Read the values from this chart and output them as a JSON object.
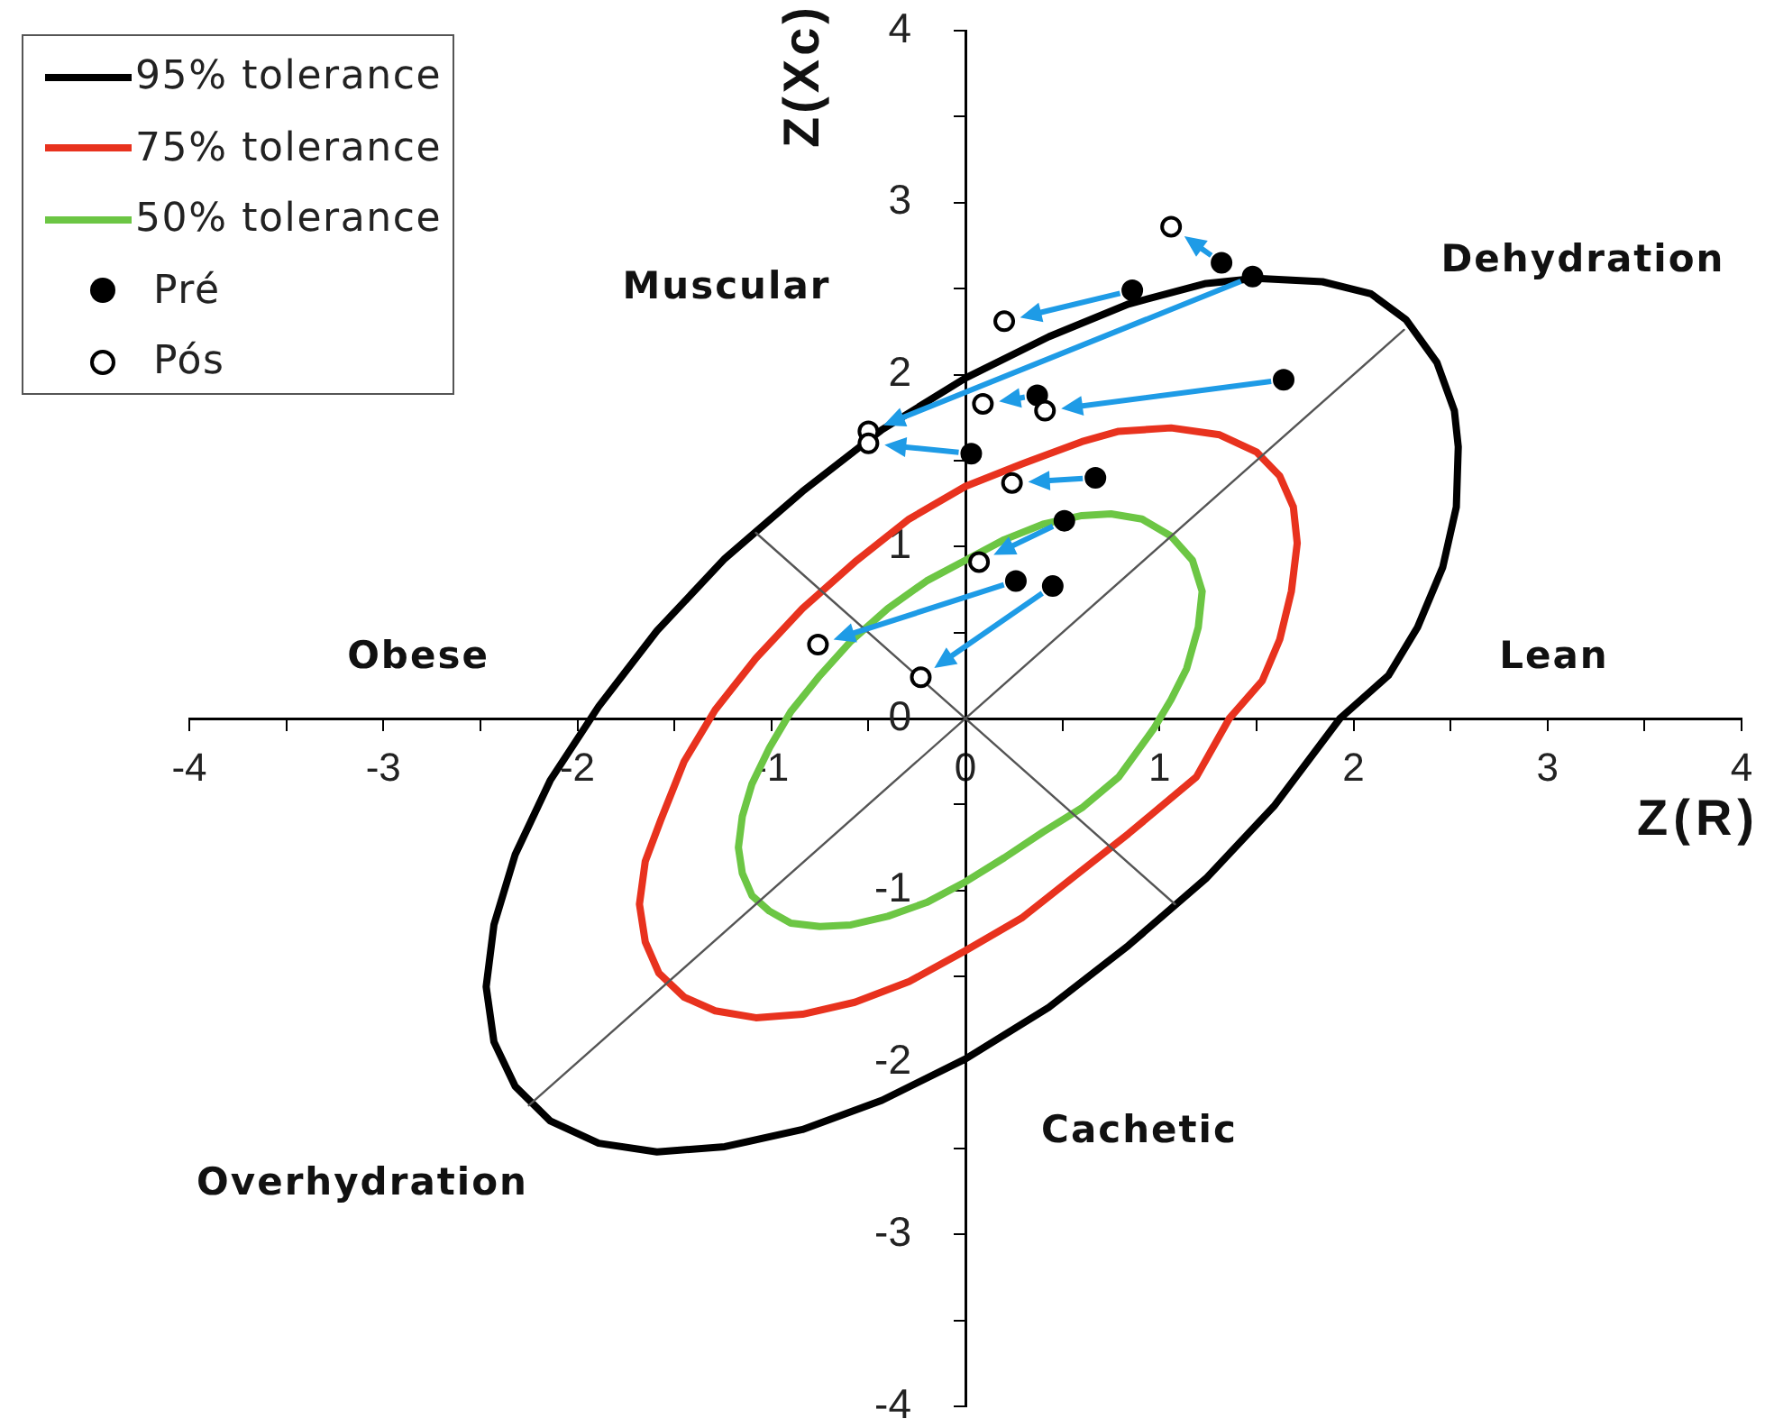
{
  "chart_data": {
    "type": "scatter",
    "xlabel": "Z(R)",
    "ylabel": "Z(Xc)",
    "xlim": [
      -4,
      4
    ],
    "ylim": [
      -4,
      4
    ],
    "xticks": [
      -4,
      {
        "value": -3.5,
        "label": null
      },
      -3,
      {
        "value": -2.5,
        "label": null
      },
      -2,
      {
        "value": -1.5,
        "label": null
      },
      -1,
      {
        "value": -0.5,
        "label": null
      },
      0,
      {
        "value": 0.5,
        "label": null
      },
      1,
      {
        "value": 1.5,
        "label": null
      },
      2,
      {
        "value": 2.5,
        "label": null
      },
      3,
      {
        "value": 3.5,
        "label": null
      },
      4
    ],
    "yticks": [
      -4,
      {
        "value": -3.5,
        "label": null
      },
      -3,
      {
        "value": -2.5,
        "label": null
      },
      -2,
      {
        "value": -1.5,
        "label": null
      },
      -1,
      {
        "value": -0.5,
        "label": null
      },
      0,
      {
        "value": 0.5,
        "label": null
      },
      1,
      {
        "value": 1.5,
        "label": null
      },
      2,
      {
        "value": 2.5,
        "label": null
      },
      3,
      {
        "value": 3.5,
        "label": null
      },
      4
    ],
    "grid": false,
    "legend": "top left",
    "annotations": [
      "Muscular",
      "Dehydration",
      "Obese",
      "Lean",
      "Overhydration",
      "Cachetic"
    ],
    "series": [
      {
        "name": "95% tolerance",
        "type": "line",
        "color": "#000000",
        "marker": "none",
        "x": [
          2.54,
          2.52,
          2.43,
          2.27,
          2.09,
          1.84,
          1.5,
          1.24,
          0.84,
          0.43,
          0,
          -0.43,
          -0.84,
          -1.24,
          -1.59,
          -1.89,
          -2.14,
          -2.32,
          -2.43,
          -2.47,
          -2.43,
          -2.32,
          -2.14,
          -1.89,
          -1.59,
          -1.24,
          -0.84,
          -0.43,
          0,
          0.43,
          0.84,
          1.24,
          1.59,
          1.93,
          2.18,
          2.33,
          2.46,
          2.53,
          2.54,
          2.52
        ],
        "values": [
          1.58,
          1.79,
          2.07,
          2.32,
          2.47,
          2.54,
          2.56,
          2.53,
          2.41,
          2.22,
          1.98,
          1.68,
          1.32,
          0.93,
          0.51,
          0.07,
          -0.36,
          -0.79,
          -1.2,
          -1.56,
          -1.88,
          -2.14,
          -2.34,
          -2.47,
          -2.52,
          -2.49,
          -2.39,
          -2.22,
          -1.98,
          -1.68,
          -1.32,
          -0.93,
          -0.51,
          0,
          0.25,
          0.53,
          0.88,
          1.23,
          1.58,
          1.79
        ]
      },
      {
        "name": "75% tolerance",
        "type": "line",
        "color": "#e8321e",
        "marker": "none",
        "x": [
          1.71,
          1.69,
          1.62,
          1.5,
          1.31,
          1.06,
          0.79,
          0.6,
          0.29,
          0,
          -0.29,
          -0.57,
          -0.84,
          -1.08,
          -1.29,
          -1.45,
          -1.57,
          -1.65,
          -1.68,
          -1.65,
          -1.58,
          -1.45,
          -1.29,
          -1.08,
          -0.84,
          -0.57,
          -0.29,
          0,
          0.29,
          0.57,
          0.84,
          1.19,
          1.36,
          1.53,
          1.62,
          1.68,
          1.71,
          1.69
        ],
        "values": [
          1.02,
          1.23,
          1.41,
          1.55,
          1.65,
          1.69,
          1.67,
          1.61,
          1.48,
          1.35,
          1.16,
          0.91,
          0.64,
          0.35,
          0.05,
          -0.25,
          -0.59,
          -0.83,
          -1.08,
          -1.3,
          -1.48,
          -1.62,
          -1.7,
          -1.74,
          -1.72,
          -1.65,
          -1.53,
          -1.35,
          -1.16,
          -0.91,
          -0.67,
          -0.34,
          0,
          0.22,
          0.46,
          0.74,
          1.02,
          1.23
        ]
      },
      {
        "name": "50% tolerance",
        "type": "line",
        "color": "#6cc644",
        "marker": "none",
        "x": [
          1.22,
          1.17,
          1.06,
          0.91,
          0.75,
          0.6,
          0.4,
          0.2,
          0,
          -0.2,
          -0.4,
          -0.59,
          -0.75,
          -0.9,
          -1.01,
          -1.1,
          -1.15,
          -1.17,
          -1.15,
          -1.1,
          -1.01,
          -0.9,
          -0.75,
          -0.59,
          -0.4,
          -0.2,
          0,
          0.2,
          0.4,
          0.6,
          0.79,
          0.97,
          1.06,
          1.14,
          1.2,
          1.22,
          1.17
        ],
        "values": [
          0.74,
          0.92,
          1.06,
          1.16,
          1.19,
          1.18,
          1.13,
          1.04,
          0.92,
          0.8,
          0.64,
          0.45,
          0.25,
          0.04,
          -0.17,
          -0.38,
          -0.57,
          -0.75,
          -0.9,
          -1.03,
          -1.12,
          -1.19,
          -1.21,
          -1.2,
          -1.15,
          -1.07,
          -0.95,
          -0.81,
          -0.66,
          -0.52,
          -0.34,
          -0.06,
          0.11,
          0.29,
          0.53,
          0.74,
          0.92
        ]
      },
      {
        "type": "line",
        "color": "#555555",
        "marker": "none",
        "x": [
          -2.25,
          2.26
        ],
        "values": [
          -2.25,
          2.26
        ]
      },
      {
        "type": "line",
        "color": "#555555",
        "marker": "none",
        "x": [
          -1.08,
          1.08
        ],
        "values": [
          1.08,
          -1.08
        ]
      },
      {
        "name": "Pré",
        "color": "#000000",
        "marker": "circle",
        "x": [
          1.32,
          1.48,
          0.86,
          1.64,
          0.37,
          0.03,
          0.67,
          0.51,
          0.26,
          0.45
        ],
        "values": [
          2.65,
          2.57,
          2.49,
          1.97,
          1.88,
          1.54,
          1.4,
          1.15,
          0.8,
          0.77
        ]
      },
      {
        "name": "Pós",
        "color": "#000000",
        "marker": "circle",
        "x": [
          1.06,
          -0.5,
          0.2,
          0.41,
          0.09,
          -0.5,
          0.24,
          0.07,
          -0.76,
          -0.23
        ],
        "values": [
          2.86,
          1.67,
          2.31,
          1.79,
          1.83,
          1.6,
          1.37,
          0.91,
          0.43,
          0.24
        ]
      }
    ]
  }
}
